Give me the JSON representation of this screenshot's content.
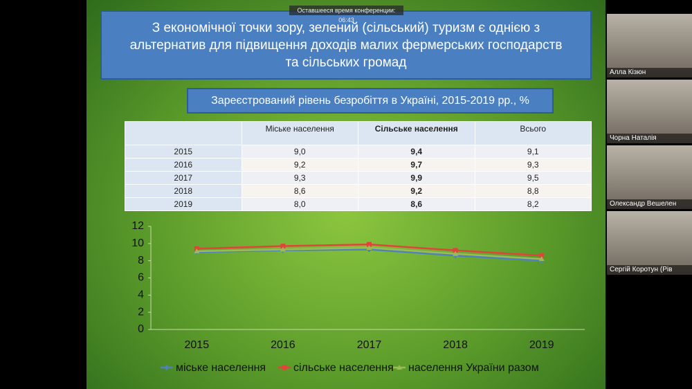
{
  "timer": "Оставшееся время конференции: 06:43",
  "slide": {
    "title": "З економічної точки зору, зелений (сільський) туризм є однією з альтернатив для підвищення доходів малих фермерських господарств та сільських громад",
    "subtitle": "Зареєстрований рівень безробіття в Україні, 2015-2019 рр., %",
    "table": {
      "header": [
        "Міське населення",
        "Сільське населення",
        "Всього"
      ],
      "rows": [
        [
          "2015",
          "9,0",
          "9,4",
          "9,1"
        ],
        [
          "2016",
          "9,2",
          "9,7",
          "9,3"
        ],
        [
          "2017",
          "9,3",
          "9,9",
          "9,5"
        ],
        [
          "2018",
          "8,6",
          "9,2",
          "8,8"
        ],
        [
          "2019",
          "8,0",
          "8,6",
          "8,2"
        ]
      ]
    }
  },
  "chart_data": {
    "type": "line",
    "categories": [
      "2015",
      "2016",
      "2017",
      "2018",
      "2019"
    ],
    "series": [
      {
        "name": "міське населення",
        "color": "#4f81bd",
        "values": [
          9.0,
          9.2,
          9.3,
          8.6,
          8.0
        ]
      },
      {
        "name": "сільське населення",
        "color": "#e0453a",
        "values": [
          9.4,
          9.7,
          9.9,
          9.2,
          8.6
        ]
      },
      {
        "name": "населення України разом",
        "color": "#9bbb59",
        "values": [
          9.1,
          9.3,
          9.5,
          8.8,
          8.2
        ]
      }
    ],
    "ylim": [
      0,
      12
    ],
    "yticks": [
      0,
      2,
      4,
      6,
      8,
      10,
      12
    ],
    "grid": false,
    "legend": "bottom"
  },
  "participants": [
    "Алла Кізюн",
    "Чорна Наталія",
    "Олександр Вешелен",
    "Сергій Коротун (Рів"
  ]
}
